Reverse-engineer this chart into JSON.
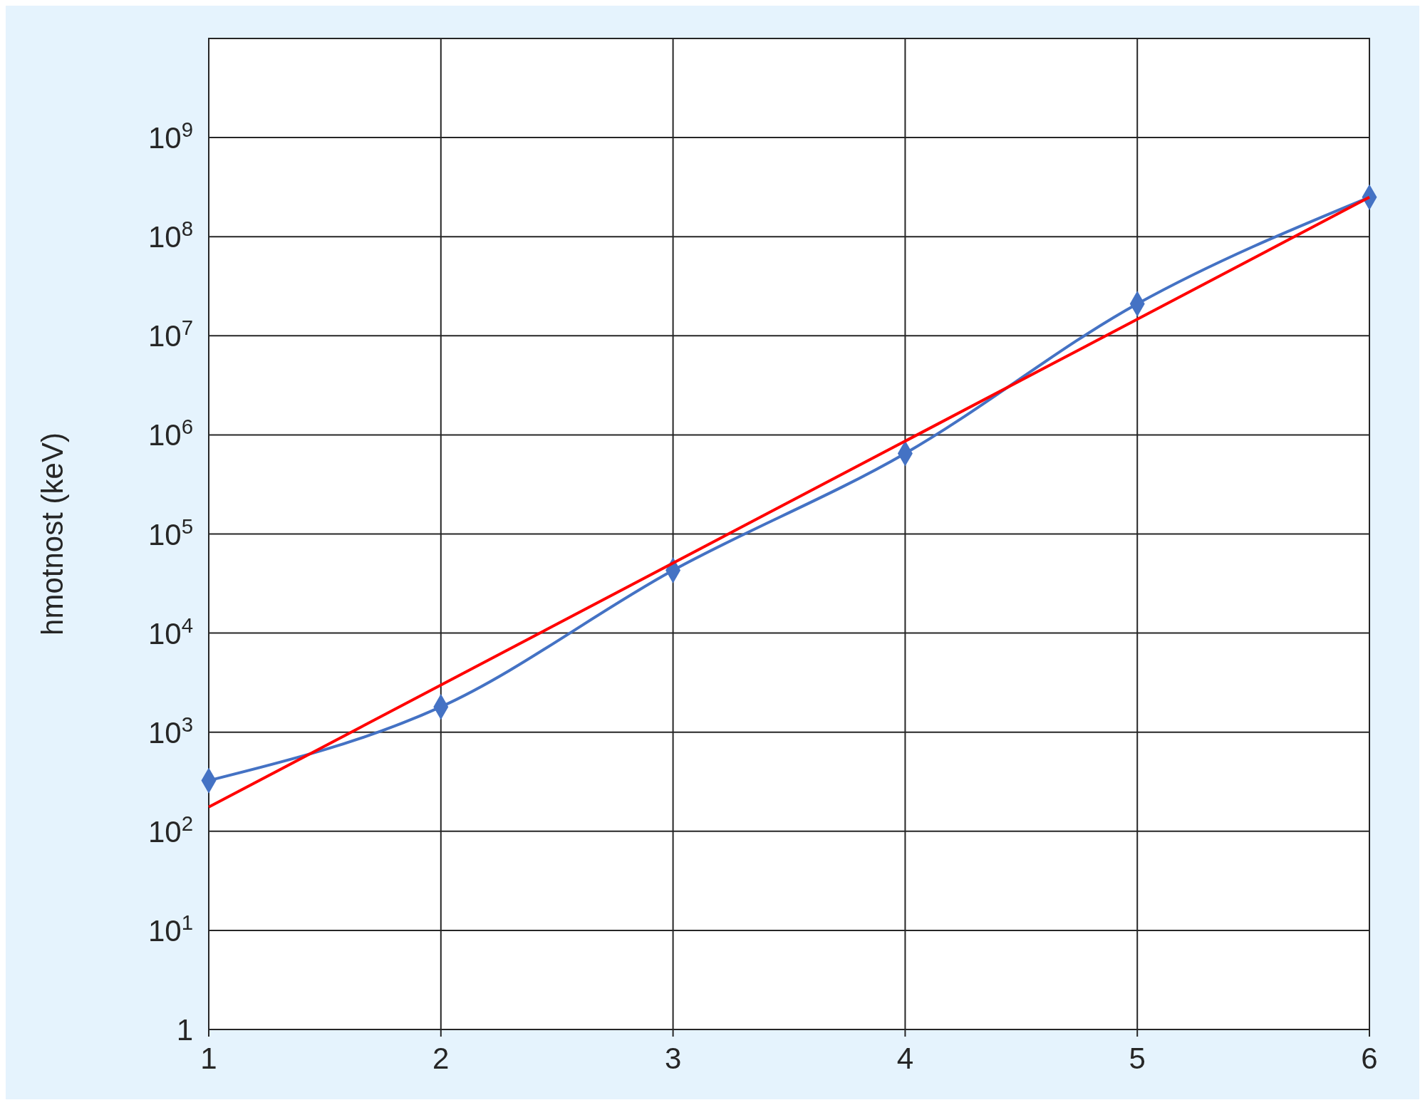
{
  "chart_data": {
    "type": "line",
    "ylabel": "hmotnost (keV)",
    "log": "y",
    "grid": true,
    "xlim": [
      1,
      6
    ],
    "xticks": [
      1,
      2,
      3,
      4,
      5,
      6
    ],
    "ylim": [
      1,
      10000000000
    ],
    "yticks": [
      {
        "value": 1,
        "label": "1"
      },
      {
        "value": 10,
        "label": "10$^{1}$"
      },
      {
        "value": 100,
        "label": "10$^{2}$"
      },
      {
        "value": 1000,
        "label": "10$^{3}$"
      },
      {
        "value": 10000,
        "label": "10$^{4}$"
      },
      {
        "value": 100000,
        "label": "10$^{5}$"
      },
      {
        "value": 1000000,
        "label": "10$^{6}$"
      },
      {
        "value": 10000000,
        "label": "10$^{7}$"
      },
      {
        "value": 100000000,
        "label": "10$^{8}$"
      },
      {
        "value": 1000000000,
        "label": "10$^{9}$"
      }
    ],
    "series": [
      {
        "color": "#4472c4",
        "x": [
          1,
          2,
          3,
          4,
          5,
          6
        ],
        "values": [
          325,
          1800,
          43000,
          650000,
          21000000,
          250000000
        ],
        "marker": "diamond"
      },
      {
        "color": "#ff0000",
        "x": [
          1,
          6
        ],
        "values": [
          176,
          250000000
        ],
        "marker": "none"
      }
    ]
  }
}
